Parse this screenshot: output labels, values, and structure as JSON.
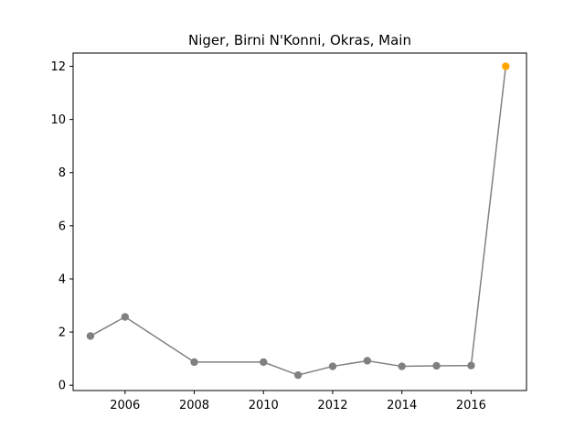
{
  "chart_data": {
    "type": "line",
    "title": "Niger, Birni N'Konni, Okras, Main",
    "xlabel": "",
    "ylabel": "",
    "xlim": [
      2004.5,
      2017.6
    ],
    "ylim": [
      -0.2,
      12.5
    ],
    "x_ticks": [
      2006,
      2008,
      2010,
      2012,
      2014,
      2016
    ],
    "y_ticks": [
      0,
      2,
      4,
      6,
      8,
      10,
      12
    ],
    "grid": false,
    "line_color": "#808080",
    "marker_color": "#808080",
    "highlight_color": "#ffa500",
    "series": [
      {
        "x": [
          2005,
          2006,
          2008,
          2010,
          2011,
          2012,
          2013,
          2014,
          2015,
          2016,
          2017
        ],
        "values": [
          1.85,
          2.57,
          0.87,
          0.87,
          0.38,
          0.71,
          0.92,
          0.71,
          0.73,
          0.74,
          12.0
        ]
      }
    ],
    "highlight_point": {
      "x": 2017,
      "y": 12.0
    }
  }
}
